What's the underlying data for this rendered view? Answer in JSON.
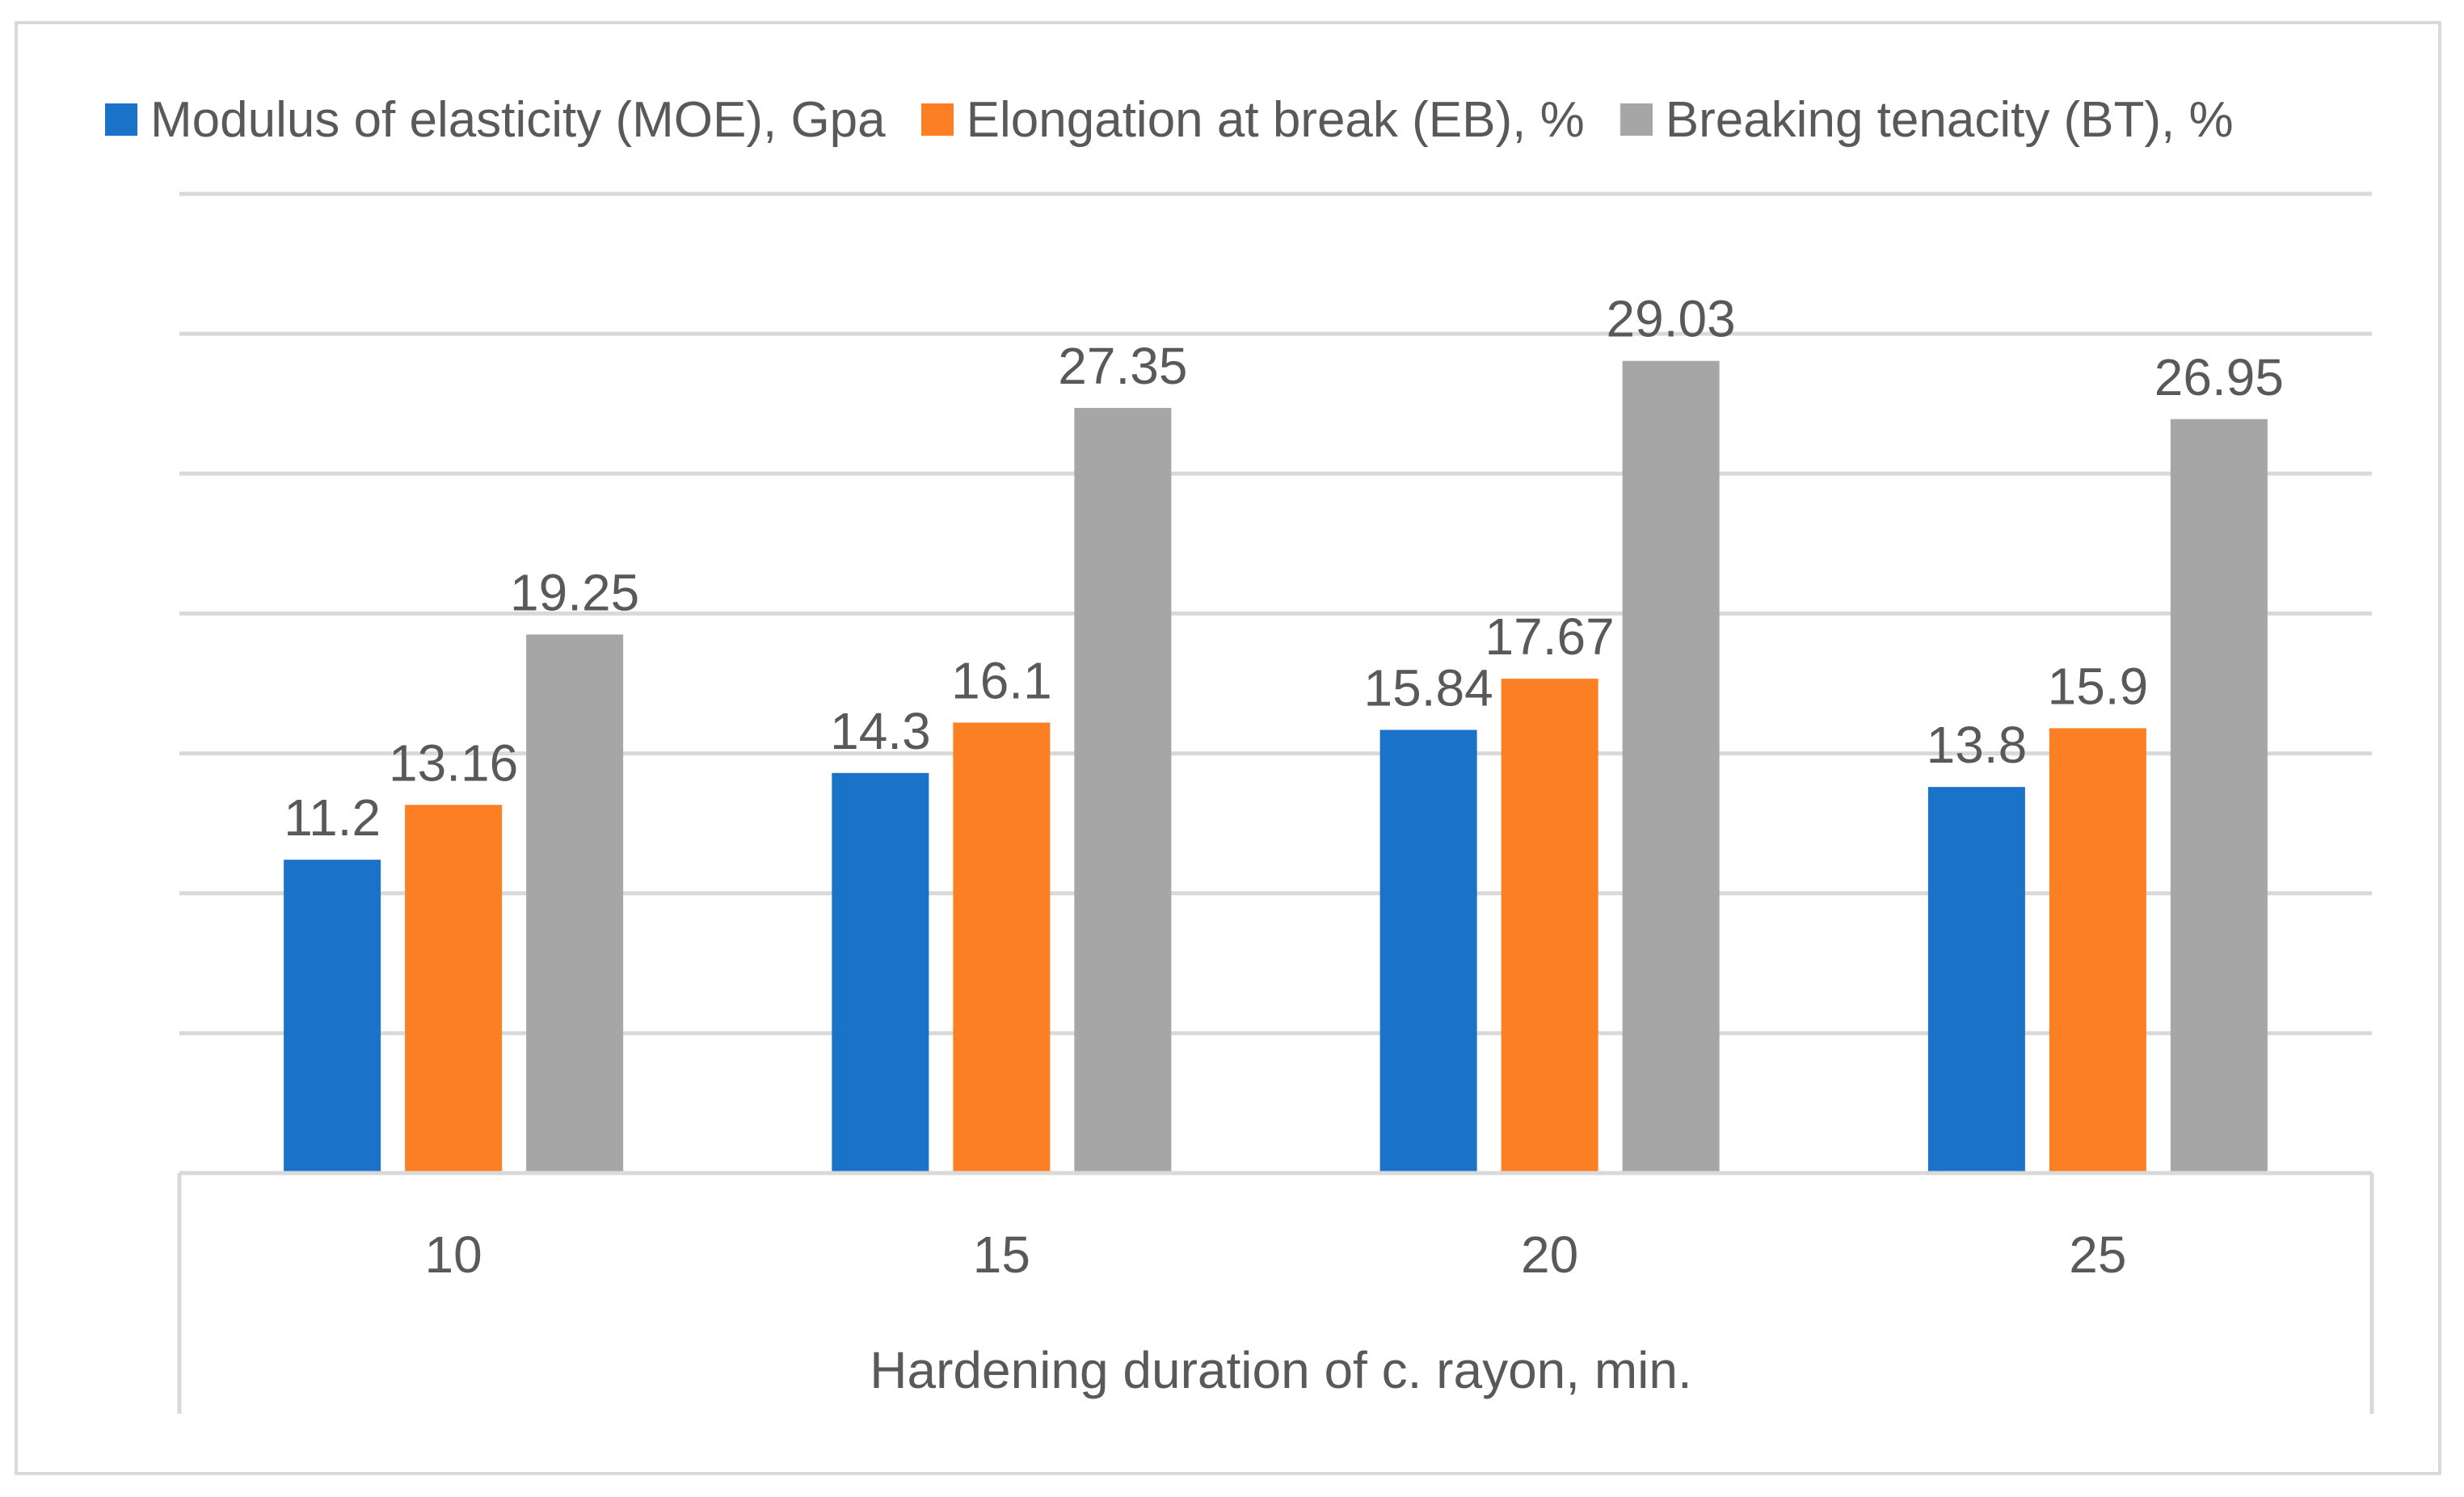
{
  "chart_data": {
    "type": "bar",
    "title": "",
    "xlabel": "Hardening duration of c. rayon, min.",
    "ylabel": "",
    "categories": [
      "10",
      "15",
      "20",
      "25"
    ],
    "series": [
      {
        "name": "Modulus of elasticity (MOE), Gpa",
        "color": "#1a73c8",
        "values": [
          11.2,
          14.3,
          15.84,
          13.8
        ],
        "labels": [
          "11.2",
          "14.3",
          "15.84",
          "13.8"
        ]
      },
      {
        "name": "Elongation at break (EB), %",
        "color": "#fd7f23",
        "values": [
          13.16,
          16.1,
          17.67,
          15.9
        ],
        "labels": [
          "13.16",
          "16.1",
          "17.67",
          "15.9"
        ]
      },
      {
        "name": "Breaking tenacity (BT), %",
        "color": "#a6a6a6",
        "values": [
          19.25,
          27.35,
          29.03,
          26.95
        ],
        "labels": [
          "19.25",
          "27.35",
          "29.03",
          "26.95"
        ]
      }
    ],
    "ylim": [
      0,
      35
    ],
    "gridlines": [
      5,
      10,
      15,
      20,
      25,
      30,
      35
    ],
    "grid": true,
    "legend": "top"
  }
}
